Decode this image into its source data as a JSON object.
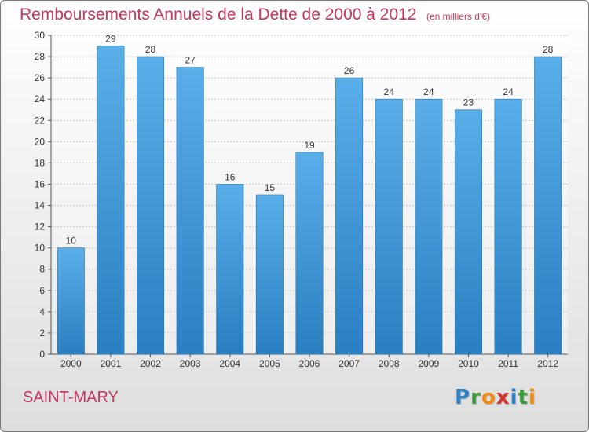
{
  "title": "Remboursements Annuels de la Dette de 2000 à 2012",
  "unit": "(en milliers d'€)",
  "commune": "SAINT-MARY",
  "logo": {
    "letters": [
      "P",
      "r",
      "o",
      "x",
      "i",
      "t",
      "i"
    ],
    "colors": [
      "#2e82c4",
      "#3a9a3a",
      "#f08a12",
      "#d6322e",
      "#2e82c4",
      "#3a9a3a",
      "#f08a12"
    ]
  },
  "colors": {
    "bar_light": "#5aaee8",
    "bar_dark": "#2a7fc1",
    "title": "#c0395f"
  },
  "chart_data": {
    "type": "bar",
    "title": "Remboursements Annuels de la Dette de 2000 à 2012",
    "categories": [
      "2000",
      "2001",
      "2002",
      "2003",
      "2004",
      "2005",
      "2006",
      "2007",
      "2008",
      "2009",
      "2010",
      "2011",
      "2012"
    ],
    "values": [
      10,
      29,
      28,
      27,
      16,
      15,
      19,
      26,
      24,
      24,
      23,
      24,
      28
    ],
    "ylim": [
      0,
      30
    ],
    "yticks": [
      0,
      2,
      4,
      6,
      8,
      10,
      12,
      14,
      16,
      18,
      20,
      22,
      24,
      26,
      28,
      30
    ],
    "grid": true
  }
}
